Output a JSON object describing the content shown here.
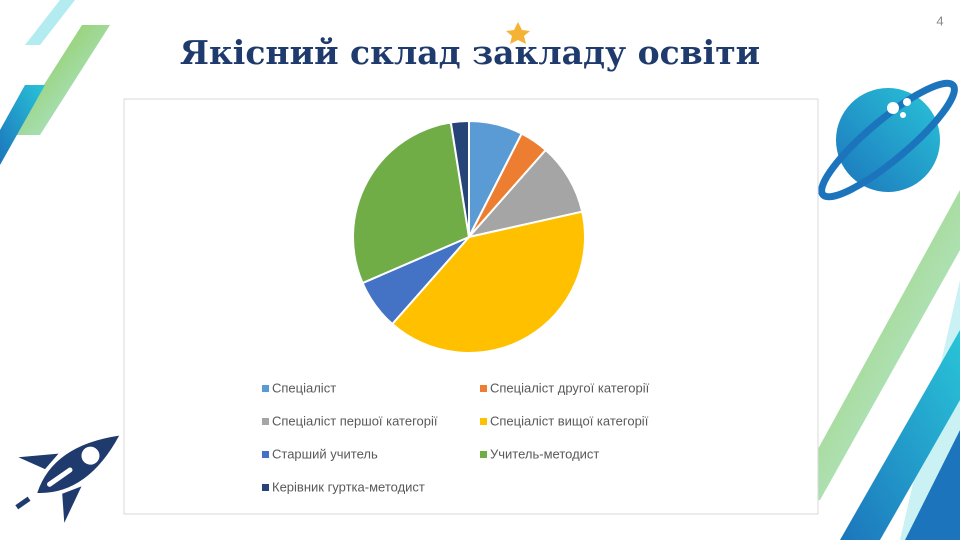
{
  "page_number": "4",
  "chart_data": {
    "type": "pie",
    "title": "Якісний склад закладу освіти",
    "categories": [
      "Спеціаліст",
      "Спеціаліст другої категорії",
      "Спеціаліст першої категорії",
      "Спеціаліст вищої категорії",
      "Старший учитель",
      "Учитель-методист",
      "Керівник гуртка-методист"
    ],
    "values": [
      7.5,
      4,
      10,
      40,
      7,
      29,
      2.5
    ],
    "colors": [
      "#5b9bd5",
      "#ed7d31",
      "#a5a5a5",
      "#ffc000",
      "#4472c4",
      "#70ad47",
      "#264478"
    ],
    "legend": "bottom"
  }
}
